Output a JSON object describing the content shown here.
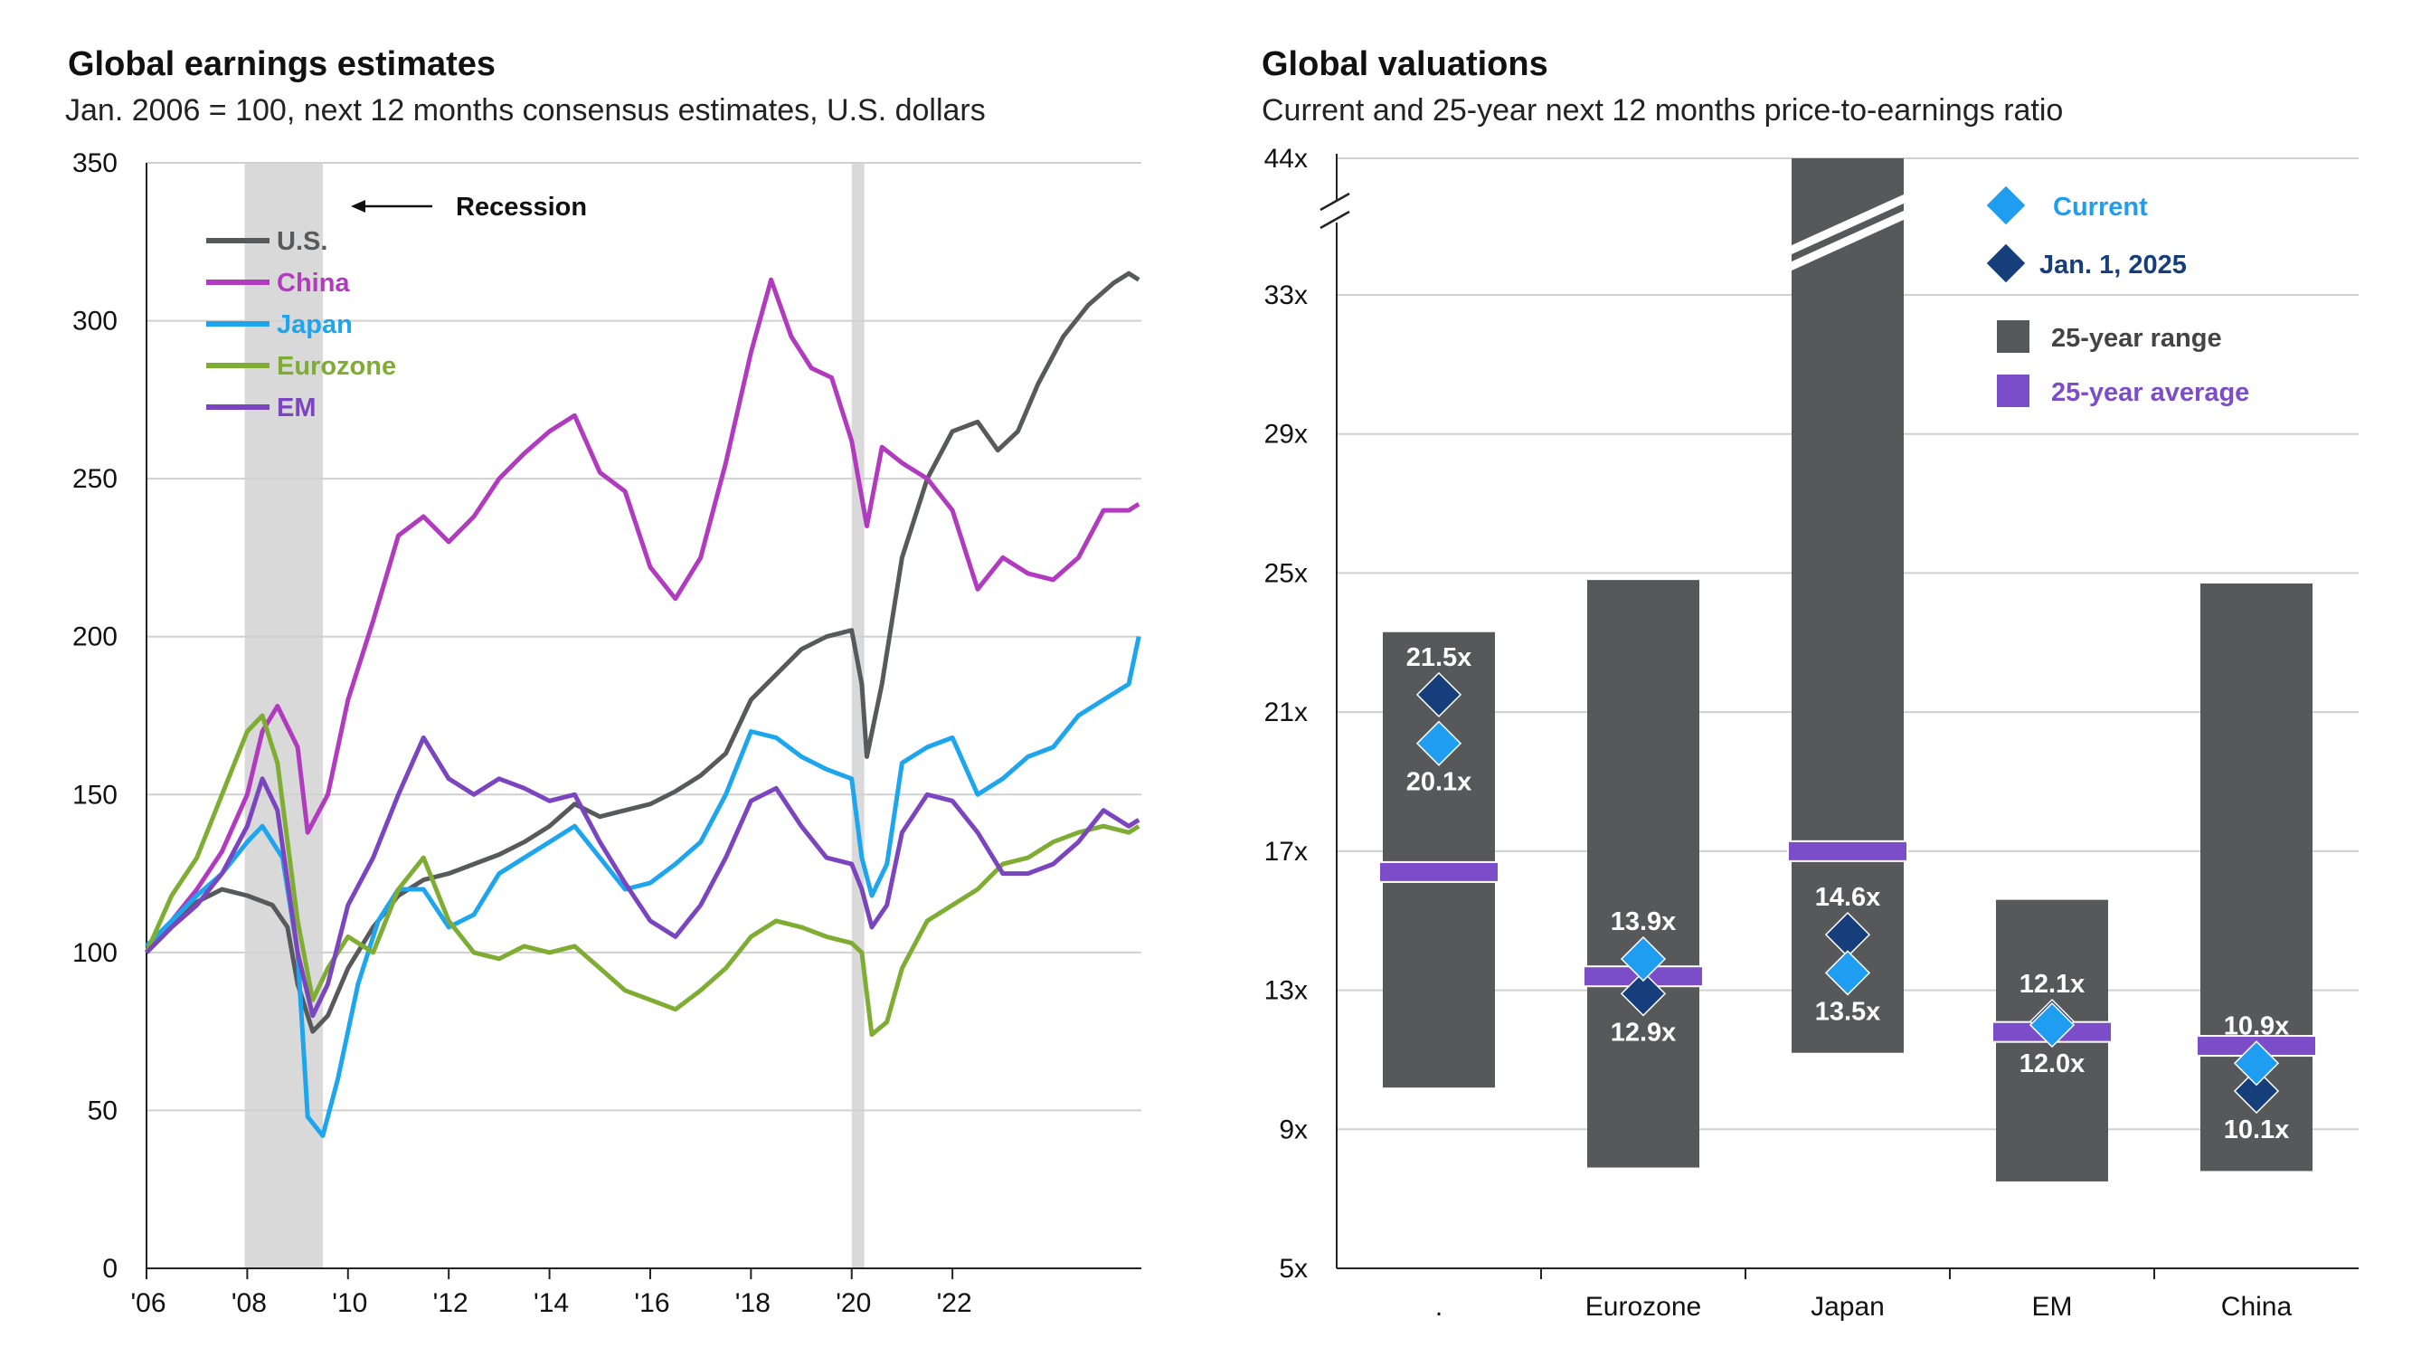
{
  "colors": {
    "us": "#58595b",
    "china": "#b13bbf",
    "japan": "#1da5ee",
    "eurozone": "#7fad33",
    "em": "#7a45bf",
    "range_bar": "#57585a",
    "avg": "#7c4dc8",
    "current": "#1f9ef1",
    "jan": "#163e7a",
    "recession": "#d9d9d9",
    "grid": "#d0d0d0"
  },
  "left": {
    "title": "Global earnings estimates",
    "subtitle": "Jan. 2006 = 100, next 12 months consensus estimates, U.S. dollars",
    "recession_label": "Recession",
    "legend": [
      {
        "key": "us",
        "label": "U.S."
      },
      {
        "key": "china",
        "label": "China"
      },
      {
        "key": "japan",
        "label": "Japan"
      },
      {
        "key": "eurozone",
        "label": "Eurozone"
      },
      {
        "key": "em",
        "label": "EM"
      }
    ]
  },
  "right": {
    "title": "Global valuations",
    "subtitle": "Current and 25-year next 12 months price-to-earnings ratio",
    "legend": {
      "current": "Current",
      "jan": "Jan. 1, 2025",
      "range": "25-year range",
      "avg": "25-year average"
    }
  },
  "chart_data": [
    {
      "type": "line",
      "title": "Global earnings estimates",
      "subtitle": "Jan. 2006 = 100, next 12 months consensus estimates, U.S. dollars",
      "xlim": [
        2006,
        2025.75
      ],
      "ylim": [
        0,
        350
      ],
      "yticks": [
        0,
        50,
        100,
        150,
        200,
        250,
        300,
        350
      ],
      "xticks": [
        2006,
        2008,
        2010,
        2012,
        2014,
        2016,
        2018,
        2020,
        2022
      ],
      "xtick_labels": [
        "'06",
        "'08",
        "'10",
        "'12",
        "'14",
        "'16",
        "'18",
        "'20",
        "'22"
      ],
      "grid": "horizontal",
      "legend": "top-left",
      "recessions": [
        [
          2007.95,
          2009.5
        ],
        [
          2020.0,
          2020.25
        ]
      ],
      "series": [
        {
          "key": "us",
          "name": "U.S.",
          "x": [
            2006,
            2006.5,
            2007,
            2007.5,
            2008,
            2008.5,
            2008.8,
            2009,
            2009.3,
            2009.6,
            2010,
            2010.5,
            2011,
            2011.5,
            2012,
            2012.5,
            2013,
            2013.5,
            2014,
            2014.5,
            2015,
            2015.5,
            2016,
            2016.5,
            2017,
            2017.5,
            2018,
            2018.5,
            2019,
            2019.5,
            2020,
            2020.2,
            2020.3,
            2020.6,
            2021,
            2021.5,
            2022,
            2022.5,
            2022.9,
            2023.3,
            2023.7,
            2024.2,
            2024.7,
            2025.2,
            2025.5,
            2025.7
          ],
          "values": [
            100,
            108,
            116,
            120,
            118,
            115,
            108,
            90,
            75,
            80,
            95,
            108,
            118,
            123,
            125,
            128,
            131,
            135,
            140,
            147,
            143,
            145,
            147,
            151,
            156,
            163,
            180,
            188,
            196,
            200,
            202,
            185,
            162,
            185,
            225,
            250,
            265,
            268,
            259,
            265,
            280,
            295,
            305,
            312,
            315,
            313
          ]
        },
        {
          "key": "china",
          "name": "China",
          "x": [
            2006,
            2006.5,
            2007,
            2007.5,
            2008,
            2008.3,
            2008.6,
            2009,
            2009.2,
            2009.6,
            2010,
            2010.5,
            2011,
            2011.5,
            2012,
            2012.5,
            2013,
            2013.5,
            2014,
            2014.5,
            2015,
            2015.5,
            2016,
            2016.5,
            2017,
            2017.5,
            2018,
            2018.4,
            2018.8,
            2019.2,
            2019.6,
            2020,
            2020.3,
            2020.6,
            2021,
            2021.5,
            2022,
            2022.5,
            2023,
            2023.5,
            2024,
            2024.5,
            2025,
            2025.5,
            2025.7
          ],
          "values": [
            102,
            110,
            120,
            132,
            150,
            170,
            178,
            165,
            138,
            150,
            180,
            205,
            232,
            238,
            230,
            238,
            250,
            258,
            265,
            270,
            252,
            246,
            222,
            212,
            225,
            255,
            290,
            313,
            295,
            285,
            282,
            262,
            235,
            260,
            255,
            250,
            240,
            215,
            225,
            220,
            218,
            225,
            240,
            240,
            242
          ]
        },
        {
          "key": "japan",
          "name": "Japan",
          "x": [
            2006,
            2006.5,
            2007,
            2007.5,
            2008,
            2008.3,
            2008.7,
            2009,
            2009.2,
            2009.5,
            2009.8,
            2010.2,
            2010.6,
            2011,
            2011.5,
            2012,
            2012.5,
            2013,
            2013.5,
            2014,
            2014.5,
            2015,
            2015.5,
            2016,
            2016.5,
            2017,
            2017.5,
            2018,
            2018.5,
            2019,
            2019.5,
            2020,
            2020.2,
            2020.4,
            2020.7,
            2021,
            2021.5,
            2022,
            2022.5,
            2023,
            2023.5,
            2024,
            2024.5,
            2025,
            2025.5,
            2025.7
          ],
          "values": [
            102,
            110,
            118,
            125,
            135,
            140,
            130,
            100,
            48,
            42,
            60,
            90,
            110,
            120,
            120,
            108,
            112,
            125,
            130,
            135,
            140,
            130,
            120,
            122,
            128,
            135,
            150,
            170,
            168,
            162,
            158,
            155,
            130,
            118,
            128,
            160,
            165,
            168,
            150,
            155,
            162,
            165,
            175,
            180,
            185,
            200
          ]
        },
        {
          "key": "eurozone",
          "name": "Eurozone",
          "x": [
            2006,
            2006.5,
            2007,
            2007.5,
            2008,
            2008.3,
            2008.6,
            2009,
            2009.3,
            2009.6,
            2010,
            2010.5,
            2011,
            2011.5,
            2012,
            2012.5,
            2013,
            2013.5,
            2014,
            2014.5,
            2015,
            2015.5,
            2016,
            2016.5,
            2017,
            2017.5,
            2018,
            2018.5,
            2019,
            2019.5,
            2020,
            2020.2,
            2020.4,
            2020.7,
            2021,
            2021.5,
            2022,
            2022.5,
            2023,
            2023.5,
            2024,
            2024.5,
            2025,
            2025.5,
            2025.7
          ],
          "values": [
            100,
            118,
            130,
            150,
            170,
            175,
            160,
            110,
            85,
            95,
            105,
            100,
            120,
            130,
            110,
            100,
            98,
            102,
            100,
            102,
            95,
            88,
            85,
            82,
            88,
            95,
            105,
            110,
            108,
            105,
            103,
            100,
            74,
            78,
            95,
            110,
            115,
            120,
            128,
            130,
            135,
            138,
            140,
            138,
            140
          ]
        },
        {
          "key": "em",
          "name": "EM",
          "x": [
            2006,
            2006.5,
            2007,
            2007.5,
            2008,
            2008.3,
            2008.6,
            2009,
            2009.3,
            2009.6,
            2010,
            2010.5,
            2011,
            2011.5,
            2012,
            2012.5,
            2013,
            2013.5,
            2014,
            2014.5,
            2015,
            2015.5,
            2016,
            2016.5,
            2017,
            2017.5,
            2018,
            2018.5,
            2019,
            2019.5,
            2020,
            2020.2,
            2020.4,
            2020.7,
            2021,
            2021.5,
            2022,
            2022.5,
            2023,
            2023.5,
            2024,
            2024.5,
            2025,
            2025.5,
            2025.7
          ],
          "values": [
            100,
            108,
            115,
            125,
            140,
            155,
            145,
            100,
            80,
            90,
            115,
            130,
            150,
            168,
            155,
            150,
            155,
            152,
            148,
            150,
            135,
            122,
            110,
            105,
            115,
            130,
            148,
            152,
            140,
            130,
            128,
            120,
            108,
            115,
            138,
            150,
            148,
            138,
            125,
            125,
            128,
            135,
            145,
            140,
            142
          ]
        }
      ]
    },
    {
      "type": "bar",
      "title": "Global valuations",
      "subtitle": "Current and 25-year next 12 months price-to-earnings ratio",
      "categories": [
        ".",
        "Eurozone",
        "Japan",
        "EM",
        "China"
      ],
      "ylim": [
        5,
        44
      ],
      "yticks": [
        5,
        9,
        13,
        17,
        21,
        25,
        29,
        33,
        44
      ],
      "ytick_labels": [
        "5x",
        "9x",
        "13x",
        "17x",
        "21x",
        "25x",
        "29x",
        "33x",
        "44x"
      ],
      "axis_break": "between 33x and 44x",
      "legend": "top-right",
      "range_low": [
        10.2,
        7.9,
        11.2,
        7.5,
        7.8
      ],
      "range_high": [
        23.3,
        24.8,
        44,
        15.6,
        24.7
      ],
      "average": [
        16.4,
        13.4,
        17.0,
        11.8,
        11.4
      ],
      "current": [
        20.1,
        13.9,
        13.5,
        12.0,
        10.9
      ],
      "jan_1_2025": [
        21.5,
        12.9,
        14.6,
        12.1,
        10.1
      ],
      "current_labels": [
        "20.1x",
        "13.9x",
        "13.5x",
        "12.0x",
        "10.9x"
      ],
      "jan_labels": [
        "21.5x",
        "12.9x",
        "14.6x",
        "12.1x",
        "10.1x"
      ]
    }
  ]
}
